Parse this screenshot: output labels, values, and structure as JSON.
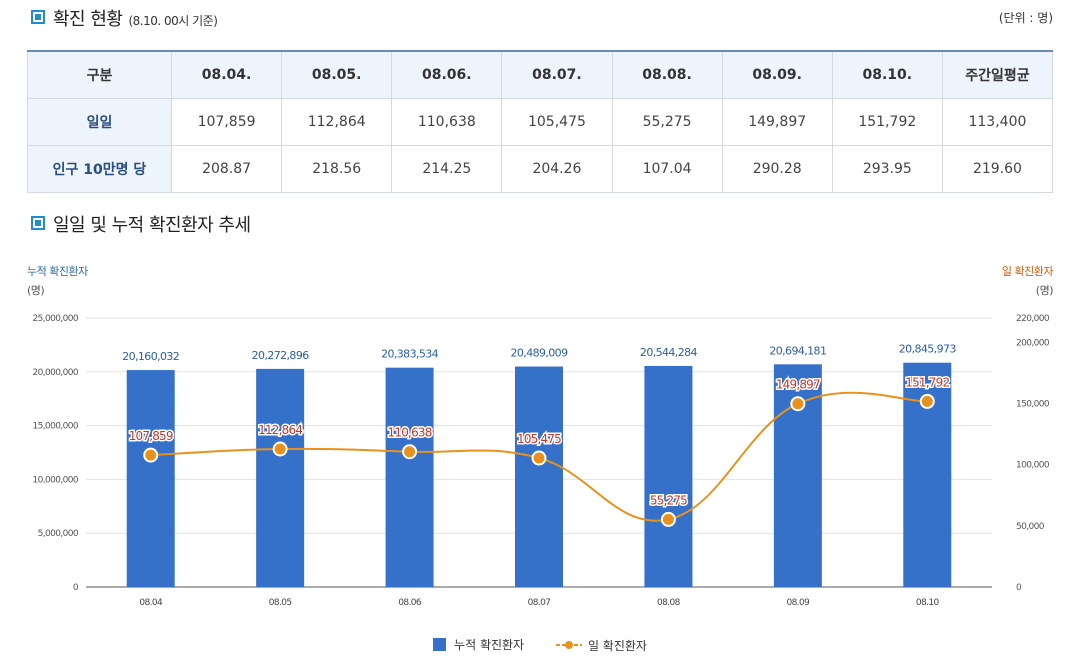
{
  "section1": {
    "title": "확진 현황",
    "subtitle": "(8.10. 00시 기준)",
    "unit": "(단위 : 명)"
  },
  "table": {
    "headers": [
      "구분",
      "08.04.",
      "08.05.",
      "08.06.",
      "08.07.",
      "08.08.",
      "08.09.",
      "08.10.",
      "주간일평균"
    ],
    "rows": [
      {
        "label": "일일",
        "cells": [
          "107,859",
          "112,864",
          "110,638",
          "105,475",
          "55,275",
          "149,897",
          "151,792",
          "113,400"
        ]
      },
      {
        "label": "인구 10만명 당",
        "cells": [
          "208.87",
          "218.56",
          "214.25",
          "204.26",
          "107.04",
          "290.28",
          "293.95",
          "219.60"
        ]
      }
    ]
  },
  "section2": {
    "title": "일일 및 누적 확진환자 추세"
  },
  "axes": {
    "left_title": "누적 확진환자",
    "left_unit": "(명)",
    "right_title": "일 확진환자",
    "right_unit": "(명)"
  },
  "colors": {
    "bar": "#3570c9",
    "line": "#e8911c",
    "bar_label": "#2a5ea8",
    "line_label": "#c0392b",
    "left_title": "#2a6aa8",
    "right_title": "#d35400"
  },
  "chart_data": {
    "type": "bar",
    "categories": [
      "08.04",
      "08.05",
      "08.06",
      "08.07",
      "08.08",
      "08.09",
      "08.10"
    ],
    "series": [
      {
        "name": "누적 확진환자",
        "type": "bar",
        "axis": "left",
        "values": [
          20160032,
          20272896,
          20383534,
          20489009,
          20544284,
          20694181,
          20845973
        ],
        "labels": [
          "20,160,032",
          "20,272,896",
          "20,383,534",
          "20,489,009",
          "20,544,284",
          "20,694,181",
          "20,845,973"
        ]
      },
      {
        "name": "일 확진환자",
        "type": "line",
        "axis": "right",
        "values": [
          107859,
          112864,
          110638,
          105475,
          55275,
          149897,
          151792
        ],
        "labels": [
          "107,859",
          "112,864",
          "110,638",
          "105,475",
          "55,275",
          "149,897",
          "151,792"
        ]
      }
    ],
    "left_axis": {
      "ticks": [
        0,
        5000000,
        10000000,
        15000000,
        20000000,
        25000000
      ],
      "tick_labels": [
        "0",
        "5,000,000",
        "10,000,000",
        "15,000,000",
        "20,000,000",
        "25,000,000"
      ],
      "range": [
        0,
        25000000
      ]
    },
    "right_axis": {
      "ticks": [
        0,
        50000,
        100000,
        150000,
        200000,
        220000
      ],
      "tick_labels": [
        "0",
        "50,000",
        "100,000",
        "150,000",
        "200,000",
        "220,000"
      ],
      "range": [
        0,
        220000
      ]
    },
    "grid": true,
    "legend_placement": "bottom"
  }
}
